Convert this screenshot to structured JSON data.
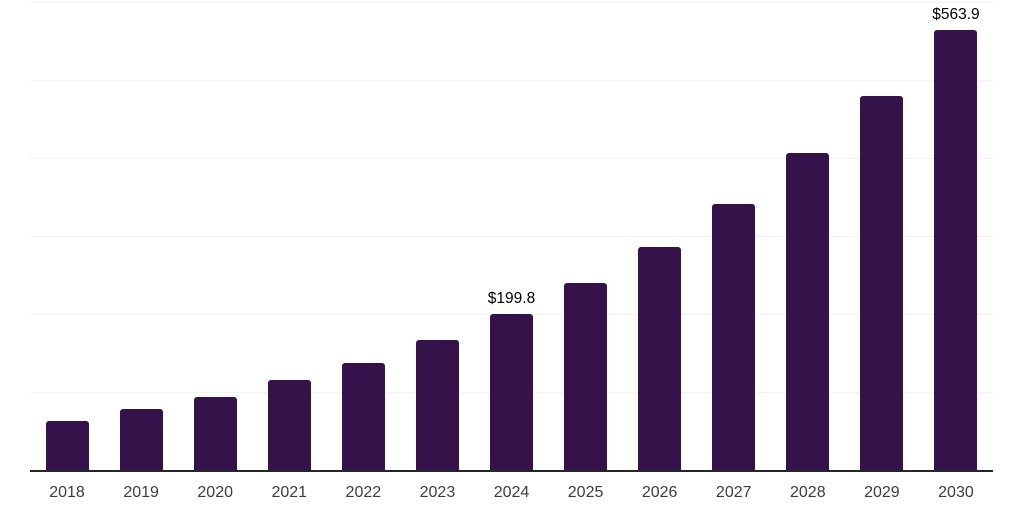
{
  "chart_data": {
    "type": "bar",
    "title": "",
    "categories": [
      "2018",
      "2019",
      "2020",
      "2021",
      "2022",
      "2023",
      "2024",
      "2025",
      "2026",
      "2027",
      "2028",
      "2029",
      "2030"
    ],
    "values": [
      63.2,
      77.6,
      94.2,
      115.6,
      137.8,
      166.9,
      199.8,
      240.2,
      286.0,
      340.4,
      405.9,
      479.4,
      563.9
    ],
    "data_labels": {
      "2024": "$199.8",
      "2030": "$563.9"
    },
    "ylim": [
      0,
      600
    ],
    "gridline_step": 100,
    "grid": true,
    "legend": false,
    "y_axis_tick_labels_visible": false,
    "colors": {
      "bar": "#36124B",
      "gridline": "#F2F2F2",
      "axis_line": "#262626",
      "x_tick_label": "#3C3C3C",
      "data_label": "#000000",
      "background": "#FFFFFF"
    }
  }
}
